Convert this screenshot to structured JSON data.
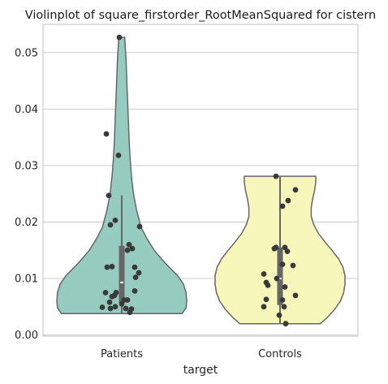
{
  "chart_data": {
    "type": "violin",
    "title": "Violinplot of square_firstorder_RootMeanSquared for cistern",
    "xlabel": "target",
    "ylabel": "",
    "categories": [
      "Patients",
      "Controls"
    ],
    "ylim": [
      -0.0002,
      0.055
    ],
    "yticks": [
      0.0,
      0.01,
      0.02,
      0.03,
      0.04,
      0.05
    ],
    "ytick_labels": [
      "0.00",
      "0.01",
      "0.02",
      "0.03",
      "0.04",
      "0.05"
    ],
    "grid": "horizontal",
    "colors": {
      "Patients": "#96cbc0",
      "Controls": "#f8f7bb",
      "outline": "#666666",
      "points": "#3a3a3a",
      "box": "#666666",
      "median": "#ffffff"
    },
    "violins": [
      {
        "category": "Patients",
        "min": 0.0038,
        "max": 0.0527,
        "profile": [
          [
            0.0038,
            0.93
          ],
          [
            0.0048,
            0.99
          ],
          [
            0.006,
            1.0
          ],
          [
            0.0075,
            0.99
          ],
          [
            0.009,
            0.95
          ],
          [
            0.0105,
            0.86
          ],
          [
            0.012,
            0.73
          ],
          [
            0.0135,
            0.61
          ],
          [
            0.015,
            0.5
          ],
          [
            0.017,
            0.39
          ],
          [
            0.019,
            0.3
          ],
          [
            0.022,
            0.23
          ],
          [
            0.025,
            0.18
          ],
          [
            0.028,
            0.15
          ],
          [
            0.031,
            0.13
          ],
          [
            0.034,
            0.115
          ],
          [
            0.037,
            0.105
          ],
          [
            0.04,
            0.095
          ],
          [
            0.043,
            0.085
          ],
          [
            0.046,
            0.075
          ],
          [
            0.049,
            0.065
          ],
          [
            0.0527,
            0.045
          ]
        ],
        "box": {
          "q1": 0.0057,
          "median": 0.0093,
          "q3": 0.0158,
          "whisker_low": 0.0038,
          "whisker_high": 0.0247
        },
        "points": [
          {
            "x": -0.03,
            "y": 0.0527
          },
          {
            "x": -0.19,
            "y": 0.0356
          },
          {
            "x": -0.04,
            "y": 0.0318
          },
          {
            "x": -0.16,
            "y": 0.0247
          },
          {
            "x": -0.08,
            "y": 0.0203
          },
          {
            "x": -0.14,
            "y": 0.0195
          },
          {
            "x": 0.22,
            "y": 0.0192
          },
          {
            "x": 0.09,
            "y": 0.016
          },
          {
            "x": 0.13,
            "y": 0.0153
          },
          {
            "x": 0.07,
            "y": 0.015
          },
          {
            "x": 0.16,
            "y": 0.012
          },
          {
            "x": -0.18,
            "y": 0.012
          },
          {
            "x": -0.12,
            "y": 0.0121
          },
          {
            "x": 0.21,
            "y": 0.011
          },
          {
            "x": 0.17,
            "y": 0.0102
          },
          {
            "x": 0.16,
            "y": 0.0078
          },
          {
            "x": -0.2,
            "y": 0.0075
          },
          {
            "x": -0.09,
            "y": 0.007
          },
          {
            "x": -0.07,
            "y": 0.0075
          },
          {
            "x": -0.12,
            "y": 0.0068
          },
          {
            "x": 0.03,
            "y": 0.0062
          },
          {
            "x": 0.07,
            "y": 0.0062
          },
          {
            "x": -0.15,
            "y": 0.0058
          },
          {
            "x": 0.0,
            "y": 0.0055
          },
          {
            "x": -0.08,
            "y": 0.005
          },
          {
            "x": -0.24,
            "y": 0.0049
          },
          {
            "x": 0.05,
            "y": 0.0047
          },
          {
            "x": 0.12,
            "y": 0.0046
          },
          {
            "x": -0.14,
            "y": 0.0047
          },
          {
            "x": 0.1,
            "y": 0.004
          }
        ]
      },
      {
        "category": "Controls",
        "min": 0.002,
        "max": 0.0281,
        "profile": [
          [
            0.002,
            0.62
          ],
          [
            0.003,
            0.72
          ],
          [
            0.0045,
            0.84
          ],
          [
            0.006,
            0.93
          ],
          [
            0.0075,
            0.98
          ],
          [
            0.009,
            1.0
          ],
          [
            0.0105,
            1.0
          ],
          [
            0.012,
            0.97
          ],
          [
            0.0135,
            0.9
          ],
          [
            0.015,
            0.8
          ],
          [
            0.0165,
            0.69
          ],
          [
            0.018,
            0.59
          ],
          [
            0.0195,
            0.52
          ],
          [
            0.021,
            0.48
          ],
          [
            0.0225,
            0.48
          ],
          [
            0.024,
            0.5
          ],
          [
            0.0255,
            0.53
          ],
          [
            0.027,
            0.55
          ],
          [
            0.0281,
            0.55
          ]
        ],
        "box": {
          "q1": 0.0053,
          "median": 0.01,
          "q3": 0.0155,
          "whisker_low": 0.002,
          "whisker_high": 0.0281
        },
        "points": [
          {
            "x": -0.05,
            "y": 0.0281
          },
          {
            "x": 0.19,
            "y": 0.0257
          },
          {
            "x": 0.1,
            "y": 0.0238
          },
          {
            "x": 0.03,
            "y": 0.0228
          },
          {
            "x": -0.05,
            "y": 0.0155
          },
          {
            "x": 0.06,
            "y": 0.0155
          },
          {
            "x": -0.07,
            "y": 0.0153
          },
          {
            "x": 0.09,
            "y": 0.0148
          },
          {
            "x": 0.03,
            "y": 0.0125
          },
          {
            "x": 0.16,
            "y": 0.0123
          },
          {
            "x": -0.2,
            "y": 0.0108
          },
          {
            "x": -0.04,
            "y": 0.01
          },
          {
            "x": -0.17,
            "y": 0.0093
          },
          {
            "x": -0.15,
            "y": 0.0088
          },
          {
            "x": 0.06,
            "y": 0.0085
          },
          {
            "x": 0.19,
            "y": 0.007
          },
          {
            "x": -0.17,
            "y": 0.0063
          },
          {
            "x": 0.03,
            "y": 0.0062
          },
          {
            "x": -0.2,
            "y": 0.005
          },
          {
            "x": 0.05,
            "y": 0.005
          },
          {
            "x": -0.01,
            "y": 0.0035
          },
          {
            "x": 0.07,
            "y": 0.002
          }
        ]
      }
    ]
  }
}
